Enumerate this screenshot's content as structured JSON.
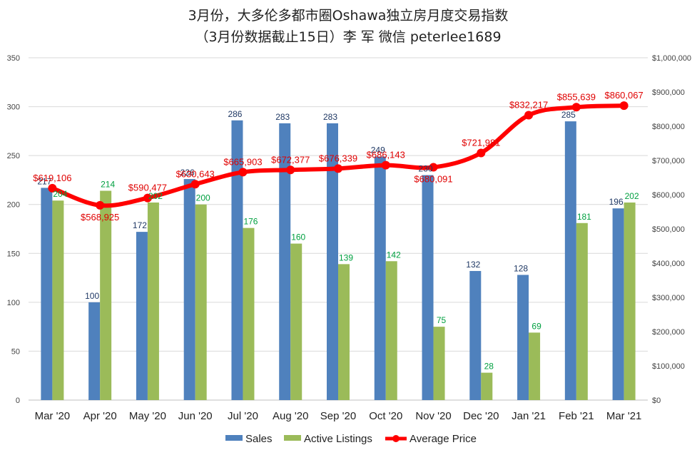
{
  "chart_data": {
    "type": "bar",
    "title": "3月份，大多伦多都市圈Oshawa独立房月度交易指数",
    "subtitle": "（3月份数据截止15日）李 军  微信  peterlee1689",
    "categories": [
      "Mar '20",
      "Apr '20",
      "May '20",
      "Jun '20",
      "Jul '20",
      "Aug '20",
      "Sep '20",
      "Oct '20",
      "Nov '20",
      "Dec '20",
      "Jan '21",
      "Feb '21",
      "Mar '21"
    ],
    "series": [
      {
        "name": "Sales",
        "type": "bar",
        "axis": "left",
        "color": "#4f81bd",
        "values": [
          217,
          100,
          172,
          226,
          286,
          283,
          283,
          249,
          230,
          132,
          128,
          285,
          196
        ],
        "labels": [
          "217",
          "100",
          "172",
          "226",
          "286",
          "283",
          "283",
          "249",
          "230",
          "132",
          "128",
          "285",
          "196"
        ]
      },
      {
        "name": "Active Listings",
        "type": "bar",
        "axis": "left",
        "color": "#9bbb59",
        "values": [
          204,
          214,
          202,
          200,
          176,
          160,
          139,
          142,
          75,
          28,
          69,
          181,
          202
        ],
        "labels": [
          "204",
          "214",
          "202",
          "200",
          "176",
          "160",
          "139",
          "142",
          "75",
          "28",
          "69",
          "181",
          "202"
        ]
      },
      {
        "name": "Average Price",
        "type": "line",
        "axis": "right",
        "color": "#ff0000",
        "values": [
          619106,
          568925,
          590477,
          630643,
          665903,
          672377,
          676339,
          686143,
          680091,
          721981,
          832217,
          855639,
          860067
        ],
        "labels": [
          "$619,106",
          "$568,925",
          "$590,477",
          "$630,643",
          "$665,903",
          "$672,377",
          "$676,339",
          "$686,143",
          "$680,091",
          "$721,981",
          "$832,217",
          "$855,639",
          "$860,067"
        ]
      }
    ],
    "y_left": {
      "range": [
        0,
        350
      ],
      "ticks": [
        0,
        50,
        100,
        150,
        200,
        250,
        300,
        350
      ],
      "tick_labels": [
        "0",
        "50",
        "100",
        "150",
        "200",
        "250",
        "300",
        "350"
      ]
    },
    "y_right": {
      "range": [
        0,
        1000000
      ],
      "ticks": [
        0,
        100000,
        200000,
        300000,
        400000,
        500000,
        600000,
        700000,
        800000,
        900000,
        1000000
      ],
      "tick_labels": [
        "$0",
        "$100,000",
        "$200,000",
        "$300,000",
        "$400,000",
        "$500,000",
        "$600,000",
        "$700,000",
        "$800,000",
        "$900,000",
        "$1,000,000"
      ]
    },
    "grid": true,
    "legend": "bottom"
  }
}
